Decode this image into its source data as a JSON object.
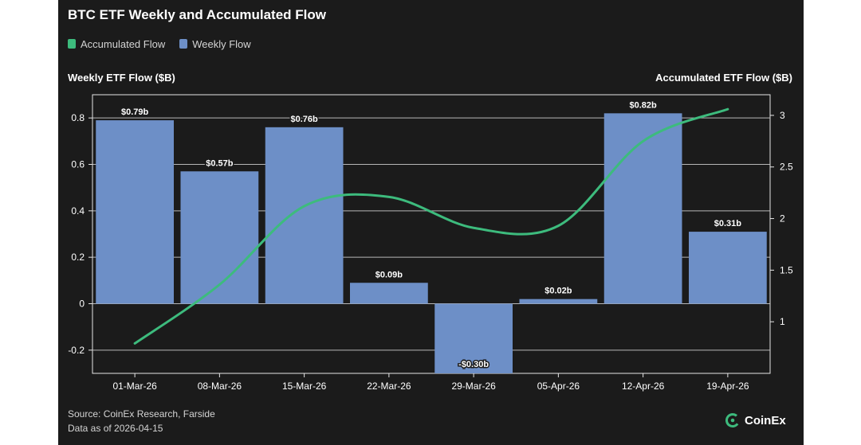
{
  "title": "BTC ETF Weekly and Accumulated Flow",
  "legend": [
    {
      "label": "Accumulated Flow",
      "color": "#3dbb7d"
    },
    {
      "label": "Weekly Flow",
      "color": "#6d8fc7"
    }
  ],
  "axis_titles": {
    "left": "Weekly ETF Flow ($B)",
    "right": "Accumulated ETF Flow ($B)"
  },
  "footer": {
    "source": "Source: CoinEx Research, Farside",
    "date": "Data as of 2026-04-15"
  },
  "brand": {
    "name": "CoinEx"
  },
  "colors": {
    "background": "#1b1b1b",
    "bar": "#6d8fc7",
    "line": "#3dbb7d",
    "grid": "#c8c8c8",
    "text": "#ffffff"
  },
  "chart_data": {
    "type": "bar",
    "categories": [
      "01-Mar-26",
      "08-Mar-26",
      "15-Mar-26",
      "22-Mar-26",
      "29-Mar-26",
      "05-Apr-26",
      "12-Apr-26",
      "19-Apr-26"
    ],
    "series": [
      {
        "name": "Weekly Flow",
        "type": "bar",
        "axis": "left",
        "values": [
          0.79,
          0.57,
          0.76,
          0.09,
          -0.3,
          0.02,
          0.82,
          0.31
        ],
        "labels": [
          "$0.79b",
          "$0.57b",
          "$0.76b",
          "$0.09b",
          "-$0.30b",
          "$0.02b",
          "$0.82b",
          "$0.31b"
        ]
      },
      {
        "name": "Accumulated Flow",
        "type": "line",
        "axis": "right",
        "values": [
          0.79,
          1.36,
          2.12,
          2.21,
          1.91,
          1.93,
          2.75,
          3.06
        ]
      }
    ],
    "left_axis": {
      "ylim": [
        -0.3,
        0.9
      ],
      "ticks": [
        -0.2,
        0,
        0.2,
        0.4,
        0.6,
        0.8
      ]
    },
    "right_axis": {
      "ylim": [
        0.5,
        3.2
      ],
      "ticks": [
        1,
        1.5,
        2,
        2.5,
        3
      ]
    },
    "grid": true,
    "legend_position": "top-left"
  }
}
